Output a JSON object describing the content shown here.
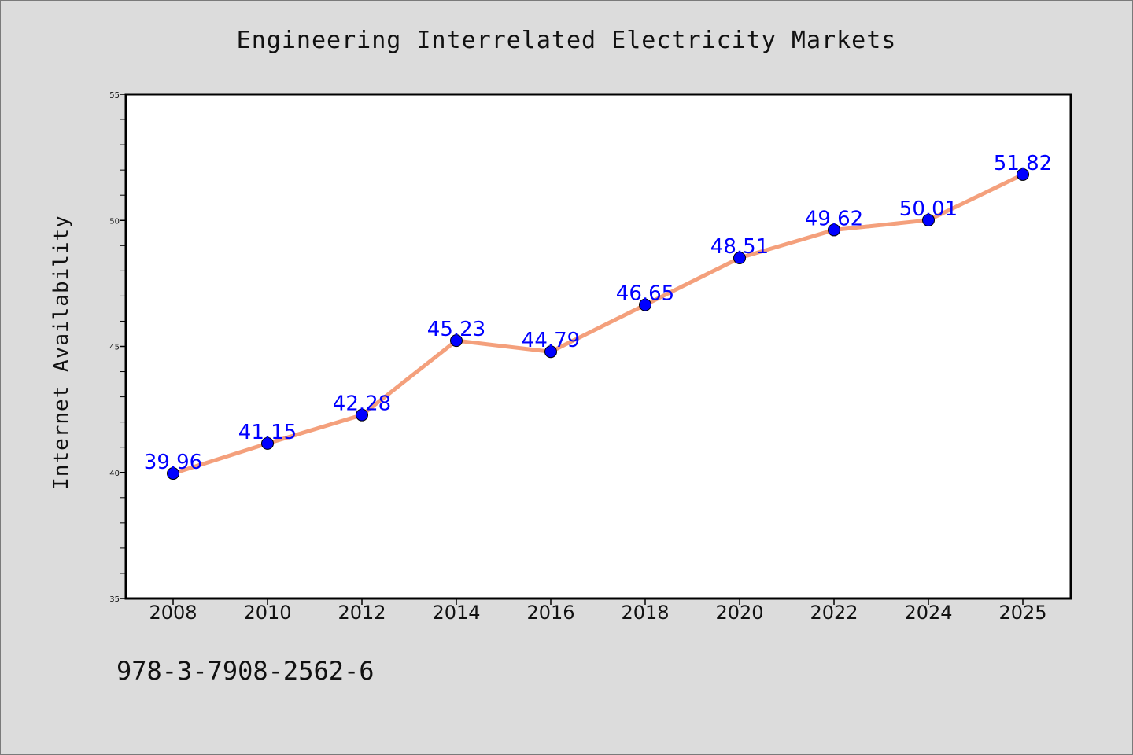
{
  "title": "Engineering Interrelated Electricity Markets",
  "footer_text": "978-3-7908-2562-6",
  "chart_data": {
    "type": "line",
    "title": "Engineering Interrelated Electricity Markets",
    "xlabel": "",
    "ylabel": "Internet Availability",
    "categories": [
      "2008",
      "2010",
      "2012",
      "2014",
      "2016",
      "2018",
      "2020",
      "2022",
      "2024",
      "2025"
    ],
    "series": [
      {
        "values": [
          39.96,
          41.15,
          42.28,
          45.23,
          44.79,
          46.65,
          48.51,
          49.62,
          50.01,
          51.82
        ],
        "data_labels": [
          "39.96",
          "41.15",
          "42.28",
          "45.23",
          "44.79",
          "46.65",
          "48.51",
          "49.62",
          "50.01",
          "51.82"
        ],
        "line_color": "#f4a07c",
        "marker_color": "#0000ff"
      }
    ],
    "ylim": [
      35,
      55
    ],
    "yticks": [
      35,
      40,
      45,
      50,
      55
    ],
    "ytick_labels": [
      "35",
      "40",
      "45",
      "50",
      "55"
    ],
    "grid": false,
    "legend": "none",
    "plot_background": "#ffffff",
    "page_background": "#dcdcdc"
  }
}
